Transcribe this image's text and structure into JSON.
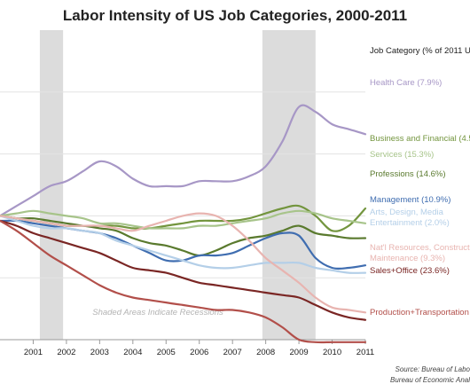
{
  "chart_data": {
    "type": "line",
    "title": "Labor Intensity of US Job Categories, 2000-2011",
    "xlabel": "",
    "ylabel": "",
    "xlim": [
      2000,
      2011
    ],
    "ylim": [
      0.5,
      1.75
    ],
    "x_tick_labels": [
      "2001",
      "2002",
      "2003",
      "2004",
      "2005",
      "2006",
      "2007",
      "2008",
      "2009",
      "2010",
      "2011"
    ],
    "x_ticks": [
      2001,
      2002,
      2003,
      2004,
      2005,
      2006,
      2007,
      2008,
      2009,
      2010,
      2011
    ],
    "grid": "horizontal",
    "legend_header": "Job Category (% of 2011 U",
    "legend_placement": "right",
    "recessions": [
      [
        2001.2,
        2001.9
      ],
      [
        2007.9,
        2009.5
      ]
    ],
    "annotation": "Shaded Areas Indicate Recessions",
    "source_lines": [
      "Source: Bureau of Labo",
      "Bureau of Economic Anal"
    ],
    "x": [
      2000,
      2000.5,
      2001,
      2001.5,
      2002,
      2002.5,
      2003,
      2003.5,
      2004,
      2004.5,
      2005,
      2005.5,
      2006,
      2006.5,
      2007,
      2007.5,
      2008,
      2008.5,
      2009,
      2009.5,
      2010,
      2010.5,
      2011
    ],
    "series": [
      {
        "name": "Health Care (7.9%)",
        "color": "#a797c6",
        "legend_lines": [
          "Health Care (7.9%)"
        ],
        "values": [
          1.0,
          1.04,
          1.08,
          1.12,
          1.14,
          1.18,
          1.22,
          1.2,
          1.15,
          1.12,
          1.12,
          1.12,
          1.14,
          1.14,
          1.14,
          1.16,
          1.2,
          1.3,
          1.44,
          1.42,
          1.37,
          1.35,
          1.33
        ]
      },
      {
        "name": "Business and Financial (4.5",
        "color": "#73953e",
        "legend_lines": [
          "Business and Financial (4.5"
        ],
        "values": [
          1.0,
          0.99,
          0.98,
          0.97,
          0.96,
          0.96,
          0.96,
          0.96,
          0.95,
          0.95,
          0.96,
          0.97,
          0.98,
          0.98,
          0.98,
          0.99,
          1.01,
          1.03,
          1.04,
          1.0,
          0.94,
          0.96,
          1.03
        ]
      },
      {
        "name": "Services (15.3%)",
        "color": "#a7c48a",
        "legend_lines": [
          "Services (15.3%)"
        ],
        "values": [
          1.0,
          1.01,
          1.02,
          1.01,
          1.0,
          0.99,
          0.97,
          0.97,
          0.96,
          0.95,
          0.95,
          0.95,
          0.96,
          0.96,
          0.97,
          0.98,
          0.99,
          1.01,
          1.02,
          1.01,
          0.99,
          0.98,
          0.97
        ]
      },
      {
        "name": "Professions (14.6%)",
        "color": "#5a7a2e",
        "legend_lines": [
          "Professions (14.6%)"
        ],
        "values": [
          1.0,
          0.99,
          0.99,
          0.98,
          0.97,
          0.96,
          0.95,
          0.94,
          0.91,
          0.89,
          0.88,
          0.86,
          0.84,
          0.86,
          0.89,
          0.91,
          0.92,
          0.94,
          0.96,
          0.93,
          0.92,
          0.91,
          0.91
        ]
      },
      {
        "name": "Management (10.9%)",
        "color": "#3f6db0",
        "legend_lines": [
          "Management (10.9%)"
        ],
        "values": [
          0.98,
          0.98,
          0.97,
          0.96,
          0.95,
          0.94,
          0.93,
          0.91,
          0.88,
          0.85,
          0.82,
          0.82,
          0.84,
          0.84,
          0.85,
          0.88,
          0.91,
          0.93,
          0.92,
          0.83,
          0.79,
          0.79,
          0.8
        ]
      },
      {
        "name": "Arts, Design, Media Entertainment (2.0%)",
        "color": "#b4cfe8",
        "legend_lines": [
          "Arts, Design, Media",
          "Entertainment (2.0%)"
        ],
        "values": [
          1.0,
          0.98,
          0.96,
          0.95,
          0.95,
          0.94,
          0.93,
          0.9,
          0.88,
          0.86,
          0.84,
          0.82,
          0.8,
          0.79,
          0.79,
          0.8,
          0.81,
          0.81,
          0.81,
          0.79,
          0.78,
          0.77,
          0.77
        ]
      },
      {
        "name": "Nat'l Resources, Construct Maintenance (9.3%)",
        "color": "#e8b4b0",
        "legend_lines": [
          "Nat'l Resources, Construct",
          "Maintenance (9.3%)"
        ],
        "values": [
          1.0,
          0.99,
          0.98,
          0.97,
          0.96,
          0.96,
          0.96,
          0.95,
          0.94,
          0.96,
          0.98,
          1.0,
          1.01,
          1.0,
          0.96,
          0.9,
          0.83,
          0.78,
          0.73,
          0.67,
          0.63,
          0.62,
          0.61
        ]
      },
      {
        "name": "Sales+Office (23.6%)",
        "color": "#7a2624",
        "legend_lines": [
          "Sales+Office (23.6%)"
        ],
        "values": [
          0.98,
          0.96,
          0.93,
          0.91,
          0.89,
          0.87,
          0.85,
          0.82,
          0.79,
          0.78,
          0.77,
          0.75,
          0.73,
          0.72,
          0.71,
          0.7,
          0.69,
          0.68,
          0.67,
          0.64,
          0.61,
          0.59,
          0.58
        ]
      },
      {
        "name": "Production+Transportation",
        "color": "#b24f4a",
        "legend_lines": [
          "Production+Transportation"
        ],
        "values": [
          0.98,
          0.94,
          0.89,
          0.84,
          0.8,
          0.76,
          0.72,
          0.69,
          0.67,
          0.66,
          0.65,
          0.64,
          0.63,
          0.62,
          0.62,
          0.61,
          0.59,
          0.55,
          0.5,
          0.49,
          0.49,
          0.49,
          0.49
        ]
      }
    ]
  }
}
